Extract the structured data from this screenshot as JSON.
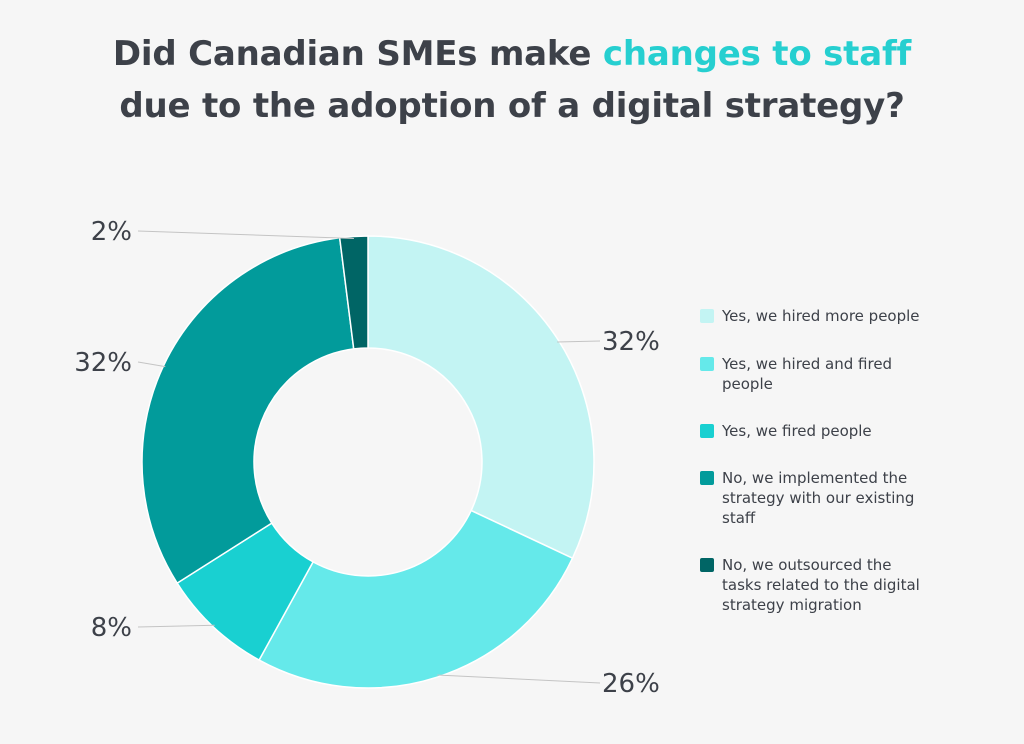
{
  "title": {
    "part1": "Did Canadian SMEs make ",
    "highlight": "changes to staff",
    "part2": "due to the adoption of a digital strategy?",
    "highlight_color": "#26cfd0"
  },
  "chart_data": {
    "type": "pie",
    "donut": true,
    "legend_position": "right",
    "categories": [
      "Yes, we hired more people",
      "Yes, we hired and fired people",
      "Yes, we fired people",
      "No, we implemented the strategy with our existing staff",
      "No, we outsourced the tasks related to the digital strategy migration"
    ],
    "values": [
      32,
      26,
      8,
      32,
      2
    ],
    "labels": [
      "32%",
      "26%",
      "8%",
      "32%",
      "2%"
    ],
    "colors": [
      "#c3f4f3",
      "#65e9ea",
      "#19d0d1",
      "#029b9b",
      "#006565"
    ]
  }
}
